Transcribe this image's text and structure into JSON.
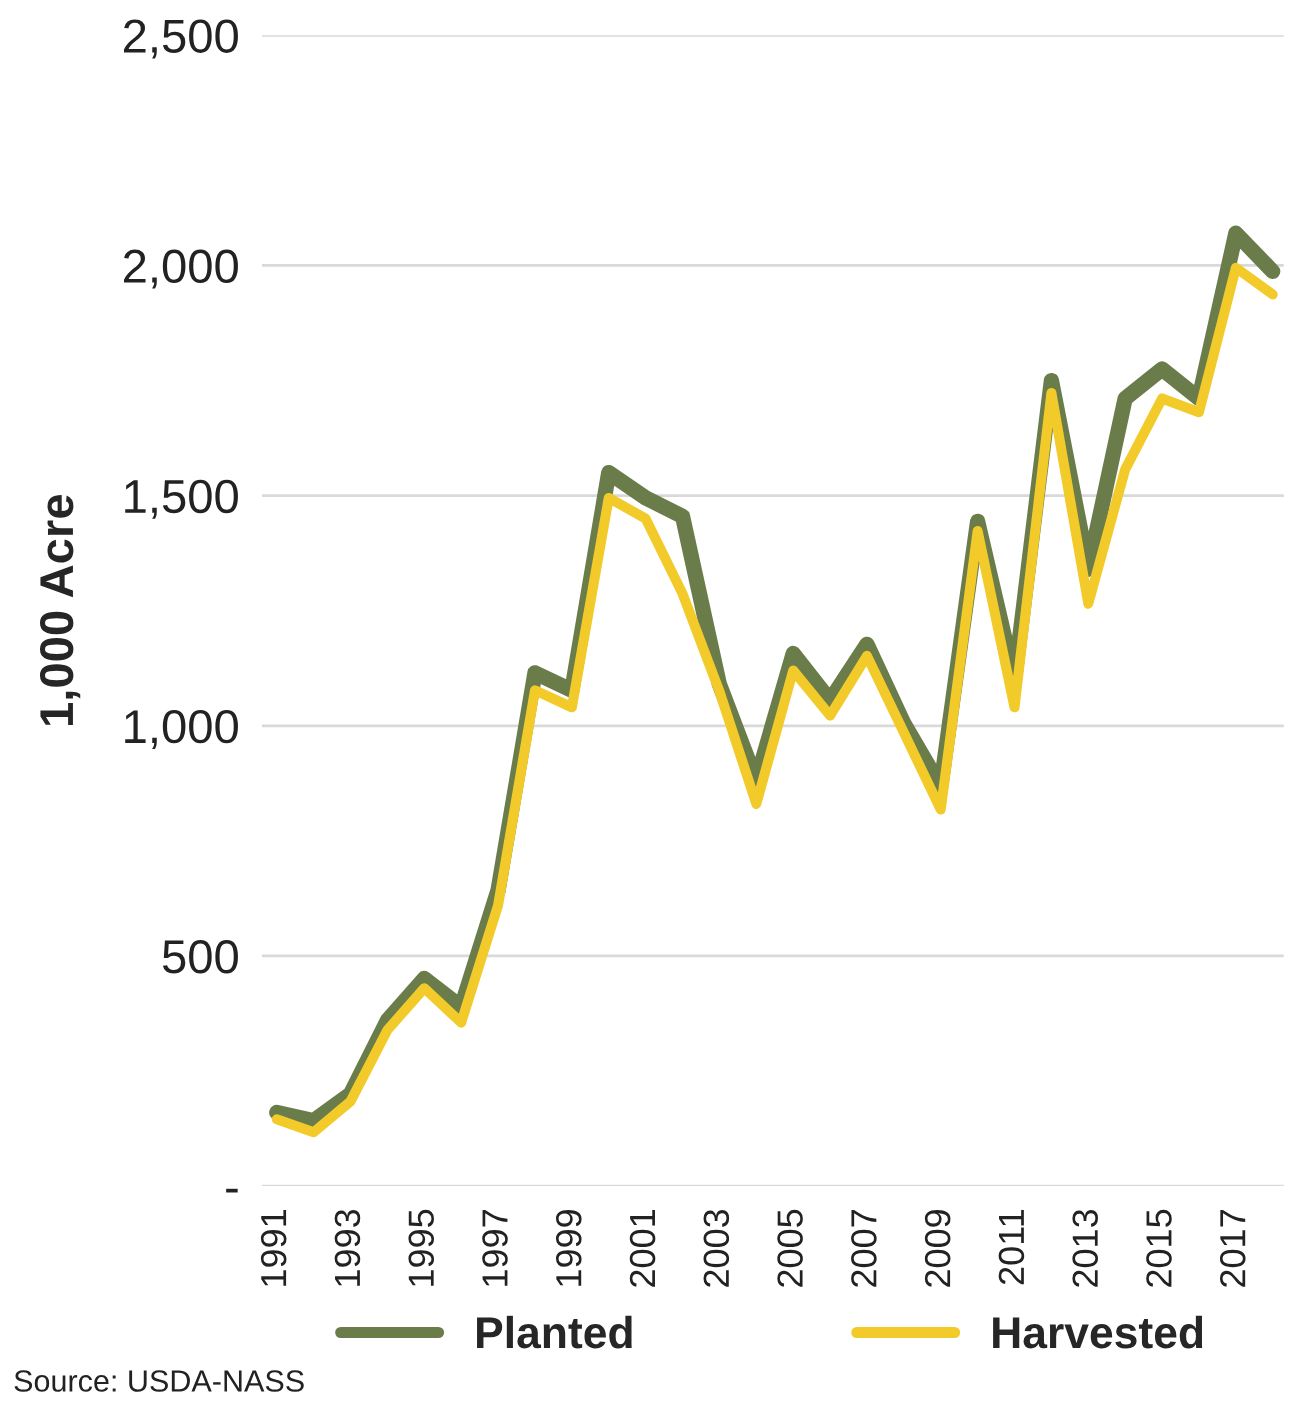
{
  "chart_data": {
    "type": "line",
    "ylabel": "1,000 Acre",
    "x": [
      1991,
      1992,
      1993,
      1994,
      1995,
      1996,
      1997,
      1998,
      1999,
      2000,
      2001,
      2002,
      2003,
      2004,
      2005,
      2006,
      2007,
      2008,
      2009,
      2010,
      2011,
      2012,
      2013,
      2014,
      2015,
      2016,
      2017,
      2018
    ],
    "series": [
      {
        "name": "Planted",
        "color": "#6b7c4b",
        "values": [
          160,
          142,
          200,
          360,
          451,
          389,
          643,
          1115,
          1077,
          1550,
          1495,
          1455,
          1090,
          880,
          1157,
          1055,
          1177,
          1005,
          868,
          1444,
          1100,
          1750,
          1340,
          1711,
          1775,
          1711,
          2070,
          1987
        ]
      },
      {
        "name": "Harvested",
        "color": "#f2cb2a",
        "values": [
          145,
          117,
          184,
          339,
          430,
          355,
          610,
          1077,
          1040,
          1495,
          1450,
          1287,
          1075,
          830,
          1120,
          1022,
          1152,
          985,
          818,
          1423,
          1040,
          1723,
          1265,
          1557,
          1711,
          1681,
          1995,
          1937
        ]
      }
    ],
    "xlim": [
      1990.6,
      2018.3
    ],
    "xticks": [
      1991,
      1993,
      1995,
      1997,
      1999,
      2001,
      2003,
      2005,
      2007,
      2009,
      2011,
      2013,
      2015,
      2017
    ],
    "ylim": [
      0,
      2500
    ],
    "yticks": [
      {
        "value": 0,
        "label": "-"
      },
      {
        "value": 500,
        "label": "500"
      },
      {
        "value": 1000,
        "label": "1,000"
      },
      {
        "value": 1500,
        "label": "1,500"
      },
      {
        "value": 2000,
        "label": "2,000"
      },
      {
        "value": 2500,
        "label": "2,500"
      }
    ],
    "grid": "y",
    "legend": "bottom",
    "marker": "none",
    "line_style": "solid",
    "annotations": [
      "Source: USDA-NASS"
    ]
  }
}
